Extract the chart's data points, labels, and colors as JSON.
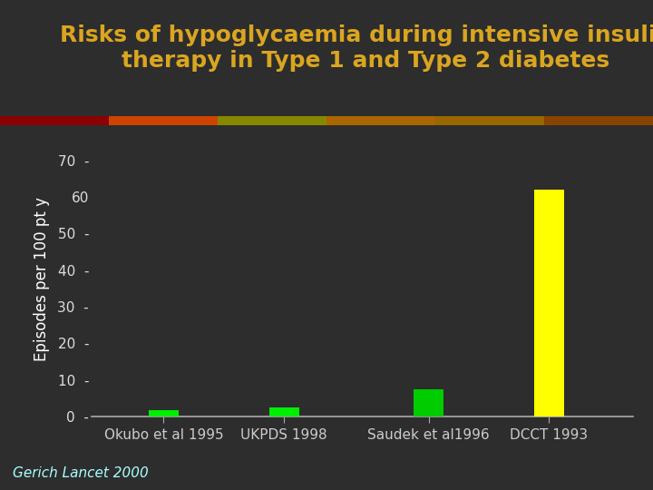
{
  "title_line1": "Risks of hypoglycaemia during intensive insulin",
  "title_line2": "therapy in Type 1 and Type 2 diabetes",
  "title_color": "#DAA520",
  "title_fontsize": 18,
  "background_color": "#2d2d2d",
  "ylabel": "Episodes per 100 pt y",
  "ylabel_color": "#FFFFFF",
  "ylabel_fontsize": 12,
  "categories": [
    "Okubo et al 1995",
    "UKPDS 1998",
    "Saudek et al1996",
    "DCCT 1993"
  ],
  "values": [
    1.8,
    2.5,
    7.5,
    62.0
  ],
  "bar_colors": [
    "#00EE00",
    "#00EE00",
    "#00CC00",
    "#FFFF00"
  ],
  "bar_width": 0.25,
  "tick_color": "#DDDDDD",
  "tick_fontsize": 11,
  "yticks": [
    0,
    10,
    20,
    30,
    40,
    50,
    60,
    70
  ],
  "ytick_dash": [
    true,
    true,
    true,
    true,
    true,
    true,
    false,
    true
  ],
  "ylim": [
    0,
    75
  ],
  "footer_text": "Gerich Lancet 2000",
  "footer_color": "#AAFFFF",
  "footer_fontsize": 11,
  "separator_color": "#8B0000",
  "xtick_color": "#CCCCCC",
  "xtick_fontsize": 11
}
